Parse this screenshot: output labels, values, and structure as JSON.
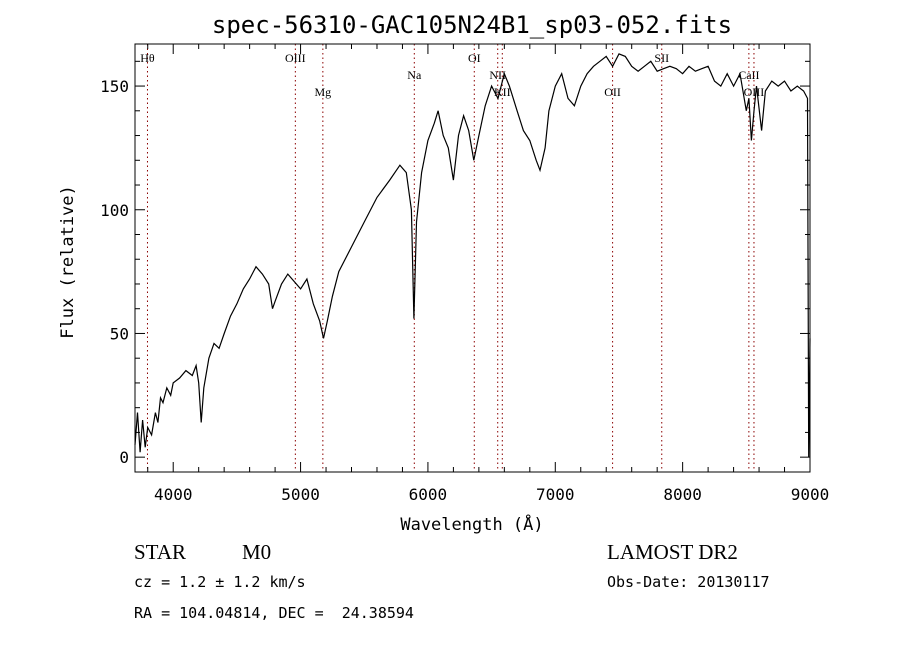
{
  "chart_data": {
    "type": "line",
    "title": "spec-56310-GAC105N24B1_sp03-052.fits",
    "xlabel": "Wavelength (Å)",
    "ylabel": "Flux (relative)",
    "xlim": [
      3700,
      9000
    ],
    "ylim": [
      -6,
      167
    ],
    "xticks": [
      {
        "value": 4000,
        "label": "4000"
      },
      {
        "value": 5000,
        "label": "5000"
      },
      {
        "value": 6000,
        "label": "6000"
      },
      {
        "value": 7000,
        "label": "7000"
      },
      {
        "value": 8000,
        "label": "8000"
      },
      {
        "value": 9000,
        "label": "9000"
      }
    ],
    "yticks": [
      {
        "value": 0,
        "label": "0"
      },
      {
        "value": 50,
        "label": "50"
      },
      {
        "value": 100,
        "label": "100"
      },
      {
        "value": 150,
        "label": "150"
      }
    ],
    "grid": false,
    "series": [
      {
        "points": [
          [
            3700,
            5
          ],
          [
            3720,
            18
          ],
          [
            3740,
            2
          ],
          [
            3760,
            15
          ],
          [
            3780,
            4
          ],
          [
            3800,
            12
          ],
          [
            3830,
            9
          ],
          [
            3860,
            18
          ],
          [
            3880,
            14
          ],
          [
            3900,
            24
          ],
          [
            3920,
            22
          ],
          [
            3950,
            28
          ],
          [
            3980,
            25
          ],
          [
            4000,
            30
          ],
          [
            4050,
            32
          ],
          [
            4100,
            35
          ],
          [
            4150,
            33
          ],
          [
            4180,
            37
          ],
          [
            4200,
            30
          ],
          [
            4220,
            14
          ],
          [
            4240,
            28
          ],
          [
            4280,
            40
          ],
          [
            4320,
            46
          ],
          [
            4360,
            44
          ],
          [
            4400,
            50
          ],
          [
            4450,
            57
          ],
          [
            4500,
            62
          ],
          [
            4550,
            68
          ],
          [
            4600,
            72
          ],
          [
            4650,
            77
          ],
          [
            4700,
            74
          ],
          [
            4750,
            70
          ],
          [
            4780,
            60
          ],
          [
            4800,
            63
          ],
          [
            4850,
            70
          ],
          [
            4900,
            74
          ],
          [
            4950,
            71
          ],
          [
            5000,
            68
          ],
          [
            5050,
            72
          ],
          [
            5100,
            62
          ],
          [
            5150,
            55
          ],
          [
            5180,
            48
          ],
          [
            5210,
            55
          ],
          [
            5250,
            65
          ],
          [
            5300,
            75
          ],
          [
            5400,
            85
          ],
          [
            5500,
            95
          ],
          [
            5600,
            105
          ],
          [
            5700,
            112
          ],
          [
            5780,
            118
          ],
          [
            5830,
            115
          ],
          [
            5870,
            100
          ],
          [
            5890,
            56
          ],
          [
            5910,
            95
          ],
          [
            5950,
            115
          ],
          [
            6000,
            128
          ],
          [
            6050,
            135
          ],
          [
            6080,
            140
          ],
          [
            6120,
            130
          ],
          [
            6160,
            125
          ],
          [
            6200,
            112
          ],
          [
            6240,
            130
          ],
          [
            6280,
            138
          ],
          [
            6320,
            132
          ],
          [
            6360,
            120
          ],
          [
            6400,
            130
          ],
          [
            6450,
            142
          ],
          [
            6500,
            150
          ],
          [
            6550,
            145
          ],
          [
            6600,
            155
          ],
          [
            6640,
            150
          ],
          [
            6700,
            140
          ],
          [
            6750,
            132
          ],
          [
            6800,
            128
          ],
          [
            6850,
            120
          ],
          [
            6880,
            116
          ],
          [
            6920,
            125
          ],
          [
            6950,
            140
          ],
          [
            7000,
            150
          ],
          [
            7050,
            155
          ],
          [
            7100,
            145
          ],
          [
            7150,
            142
          ],
          [
            7200,
            150
          ],
          [
            7250,
            155
          ],
          [
            7300,
            158
          ],
          [
            7350,
            160
          ],
          [
            7400,
            162
          ],
          [
            7450,
            158
          ],
          [
            7500,
            163
          ],
          [
            7550,
            162
          ],
          [
            7600,
            158
          ],
          [
            7650,
            156
          ],
          [
            7700,
            158
          ],
          [
            7750,
            160
          ],
          [
            7800,
            156
          ],
          [
            7850,
            157
          ],
          [
            7900,
            158
          ],
          [
            7950,
            157
          ],
          [
            8000,
            155
          ],
          [
            8050,
            158
          ],
          [
            8100,
            156
          ],
          [
            8150,
            157
          ],
          [
            8200,
            158
          ],
          [
            8250,
            152
          ],
          [
            8300,
            150
          ],
          [
            8350,
            155
          ],
          [
            8400,
            150
          ],
          [
            8450,
            155
          ],
          [
            8500,
            140
          ],
          [
            8520,
            145
          ],
          [
            8540,
            128
          ],
          [
            8560,
            140
          ],
          [
            8580,
            150
          ],
          [
            8620,
            132
          ],
          [
            8650,
            148
          ],
          [
            8700,
            152
          ],
          [
            8750,
            150
          ],
          [
            8800,
            152
          ],
          [
            8850,
            148
          ],
          [
            8900,
            150
          ],
          [
            8950,
            148
          ],
          [
            8980,
            145
          ],
          [
            8990,
            0
          ],
          [
            9000,
            48
          ]
        ]
      }
    ],
    "annotations": [
      {
        "label": "Hθ",
        "x": 3798,
        "position": "top"
      },
      {
        "label": "OIII",
        "x": 4959,
        "position": "top"
      },
      {
        "label": "Mg",
        "x": 5175,
        "position": "middle"
      },
      {
        "label": "Na",
        "x": 5893,
        "position": "upper"
      },
      {
        "label": "OI",
        "x": 6364,
        "position": "top"
      },
      {
        "label": "NII",
        "x": 6548,
        "position": "upper"
      },
      {
        "label": "KII",
        "x": 6584,
        "position": "middle"
      },
      {
        "label": "OII",
        "x": 7450,
        "position": "middle"
      },
      {
        "label": "SII",
        "x": 7836,
        "position": "top"
      },
      {
        "label": "CaII",
        "x": 8520,
        "position": "upper"
      },
      {
        "label": "OIII",
        "x": 8560,
        "position": "middle"
      }
    ],
    "colors": {
      "line": "#000000",
      "marker": "#8b0000",
      "axis": "#000000"
    }
  },
  "info": {
    "object_class": "STAR",
    "subclass": "M0",
    "cz": "cz = 1.2 ± 1.2 km/s",
    "radec": "RA = 104.04814, DEC =  24.38594",
    "survey": "LAMOST DR2",
    "obs_date": "Obs-Date: 20130117"
  }
}
